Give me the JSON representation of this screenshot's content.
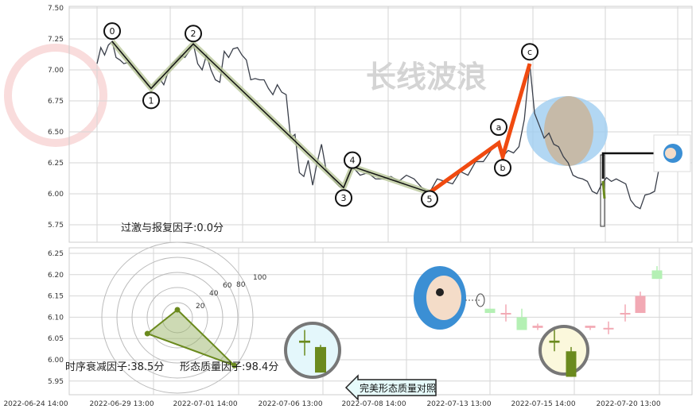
{
  "watermark": "长线波浪",
  "chart_data": [
    {
      "type": "line",
      "title": "",
      "ylim": [
        5.65,
        7.5
      ],
      "y_ticks": [
        "7.50",
        "7.25",
        "7.00",
        "6.75",
        "6.50",
        "6.25",
        "6.00",
        "5.75"
      ],
      "grid": true,
      "price": [
        7.05,
        7.18,
        7.12,
        7.2,
        7.23,
        7.1,
        7.08,
        7.05,
        7.06,
        7.02,
        7.0,
        6.95,
        6.92,
        6.88,
        6.85,
        6.9,
        6.93,
        6.88,
        6.98,
        7.05,
        7.08,
        7.12,
        7.1,
        7.15,
        7.21,
        7.05,
        7.0,
        7.12,
        7.0,
        6.92,
        6.9,
        7.15,
        7.1,
        7.17,
        7.18,
        7.12,
        7.08,
        6.92,
        6.93,
        6.92,
        6.92,
        6.85,
        6.8,
        6.88,
        6.82,
        6.8,
        6.45,
        6.48,
        6.17,
        6.14,
        6.27,
        6.07,
        6.25,
        6.4,
        6.2,
        6.15,
        6.1,
        6.06,
        6.05,
        6.15,
        6.22,
        6.15,
        6.17,
        6.12,
        6.12,
        6.14,
        6.1,
        6.15,
        6.12,
        6.05,
        6.01,
        6.12,
        6.1,
        6.08,
        6.18,
        6.15,
        6.26,
        6.26,
        6.35,
        6.41,
        6.3,
        6.35,
        6.33,
        6.38,
        6.6,
        7.05,
        6.65,
        6.55,
        6.45,
        6.49,
        6.4,
        6.38,
        6.3,
        6.25,
        6.15,
        6.13,
        6.12,
        6.1,
        6.02,
        6.0,
        6.08,
        6.13,
        6.1,
        6.12,
        6.1,
        6.08,
        5.95,
        5.9,
        5.88,
        5.99,
        6.0,
        6.02,
        6.22
      ],
      "impulse_waves": [
        {
          "label": "0",
          "index": 4,
          "price": 7.23
        },
        {
          "label": "1",
          "index": 14,
          "price": 6.85
        },
        {
          "label": "2",
          "index": 24,
          "price": 7.21
        },
        {
          "label": "3",
          "index": 58,
          "price": 6.05
        },
        {
          "label": "4",
          "index": 60,
          "price": 6.22
        },
        {
          "label": "5",
          "index": 70,
          "price": 6.01
        }
      ],
      "corrective_waves": [
        {
          "label": "a",
          "index": 79,
          "price": 6.41
        },
        {
          "label": "b",
          "index": 80,
          "price": 6.3
        },
        {
          "label": "c",
          "index": 85,
          "price": 7.05
        }
      ],
      "colors": {
        "price": "#3a3f4a",
        "impulse": "#111111",
        "impulse_band": "#b9c79a",
        "corrective": "#f04a10",
        "zone_outer": "#9fcdf0",
        "zone_inner": "#c8b7a0"
      }
    },
    {
      "type": "candlestick",
      "ylim": [
        5.93,
        6.26
      ],
      "y_ticks": [
        "6.25",
        "6.20",
        "6.15",
        "6.10",
        "6.05",
        "6.00",
        "5.95"
      ],
      "x_ticks": [
        "2022-06-24 14:00",
        "2022-06-29 13:00",
        "2022-07-01 14:00",
        "2022-07-06 13:00",
        "2022-07-08 14:00",
        "2022-07-13 13:00",
        "2022-07-15 14:00",
        "2022-07-20 13:00"
      ],
      "reference_candles": [
        {
          "open": 6.045,
          "close": 6.04,
          "high": 6.07,
          "low": 6.01
        },
        {
          "open": 6.03,
          "close": 5.97,
          "high": 6.035,
          "low": 5.97
        }
      ],
      "candles": [
        {
          "open": 6.12,
          "close": 6.11,
          "high": 6.12,
          "low": 6.11,
          "faint": true
        },
        {
          "open": 6.11,
          "close": 6.11,
          "high": 6.13,
          "low": 6.09,
          "faint": true
        },
        {
          "open": 6.1,
          "close": 6.07,
          "high": 6.12,
          "low": 6.07,
          "faint": true
        },
        {
          "open": 6.075,
          "close": 6.08,
          "high": 6.085,
          "low": 6.07,
          "faint": true
        },
        {
          "open": 6.045,
          "close": 6.04,
          "high": 6.07,
          "low": 6.02
        },
        {
          "open": 6.02,
          "close": 5.96,
          "high": 6.03,
          "low": 5.96
        },
        {
          "open": 6.075,
          "close": 6.08,
          "high": 6.08,
          "low": 6.07,
          "faint": true
        },
        {
          "open": 6.075,
          "close": 6.075,
          "high": 6.09,
          "low": 6.06,
          "faint": true
        },
        {
          "open": 6.11,
          "close": 6.11,
          "high": 6.13,
          "low": 6.09,
          "faint": true
        },
        {
          "open": 6.11,
          "close": 6.15,
          "high": 6.16,
          "low": 6.11,
          "faint": true
        },
        {
          "open": 6.21,
          "close": 6.19,
          "high": 6.22,
          "low": 6.19,
          "faint": true
        }
      ],
      "colors": {
        "up": "#f2a9b4",
        "down_faint": "#b4f0b4",
        "down": "#6b8a1e"
      }
    },
    {
      "type": "radar",
      "r_ticks": [
        "20",
        "40",
        "60",
        "80",
        "100"
      ],
      "axes": [
        {
          "label": "过激与报复因子:0.0分",
          "value": 0.0
        },
        {
          "label": "时序衰减因子:38.5分",
          "value": 38.5
        },
        {
          "label": "形态质量因子:98.4分",
          "value": 98.4
        }
      ],
      "colors": {
        "fill": "#9bb56a",
        "stroke": "#6b8a1e"
      }
    }
  ],
  "callout": {
    "label": "完美形态质量对照"
  }
}
